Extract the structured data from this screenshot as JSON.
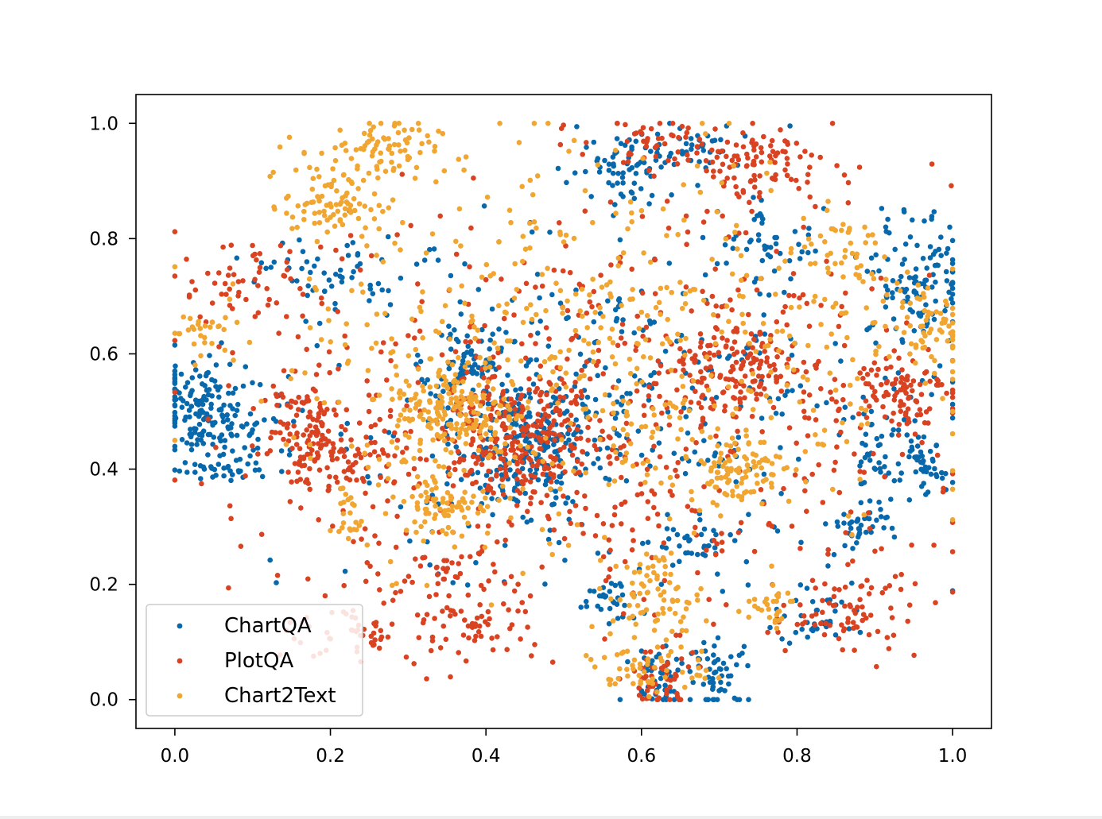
{
  "chart_data": {
    "type": "scatter",
    "title": "",
    "xlabel": "",
    "ylabel": "",
    "xlim": [
      -0.05,
      1.05
    ],
    "ylim": [
      -0.05,
      1.05
    ],
    "xticks": [
      "0.0",
      "0.2",
      "0.4",
      "0.6",
      "0.8",
      "1.0"
    ],
    "yticks": [
      "0.0",
      "0.2",
      "0.4",
      "0.6",
      "0.8",
      "1.0"
    ],
    "xtick_values": [
      0.0,
      0.2,
      0.4,
      0.6,
      0.8,
      1.0
    ],
    "ytick_values": [
      0.0,
      0.2,
      0.4,
      0.6,
      0.8,
      1.0
    ],
    "legend_position": "lower-left",
    "grid": false,
    "series": [
      {
        "name": "ChartQA",
        "color": "#0868ac",
        "clusters": [
          {
            "cx": 0.03,
            "cy": 0.5,
            "sx": 0.03,
            "sy": 0.04,
            "n": 120
          },
          {
            "cx": 0.09,
            "cy": 0.48,
            "sx": 0.04,
            "sy": 0.04,
            "n": 60
          },
          {
            "cx": 0.07,
            "cy": 0.4,
            "sx": 0.04,
            "sy": 0.01,
            "n": 30
          },
          {
            "cx": 0.45,
            "cy": 0.44,
            "sx": 0.04,
            "sy": 0.05,
            "n": 220
          },
          {
            "cx": 0.38,
            "cy": 0.58,
            "sx": 0.03,
            "sy": 0.03,
            "n": 70
          },
          {
            "cx": 0.96,
            "cy": 0.72,
            "sx": 0.03,
            "sy": 0.06,
            "n": 120
          },
          {
            "cx": 0.96,
            "cy": 0.4,
            "sx": 0.015,
            "sy": 0.03,
            "n": 45
          },
          {
            "cx": 0.9,
            "cy": 0.42,
            "sx": 0.015,
            "sy": 0.04,
            "n": 40
          },
          {
            "cx": 0.88,
            "cy": 0.3,
            "sx": 0.02,
            "sy": 0.02,
            "n": 35
          },
          {
            "cx": 0.7,
            "cy": 0.04,
            "sx": 0.02,
            "sy": 0.03,
            "n": 55
          },
          {
            "cx": 0.62,
            "cy": 0.04,
            "sx": 0.02,
            "sy": 0.03,
            "n": 45
          },
          {
            "cx": 0.58,
            "cy": 0.93,
            "sx": 0.03,
            "sy": 0.03,
            "n": 60
          },
          {
            "cx": 0.67,
            "cy": 0.96,
            "sx": 0.03,
            "sy": 0.02,
            "n": 40
          },
          {
            "cx": 0.83,
            "cy": 0.15,
            "sx": 0.03,
            "sy": 0.03,
            "n": 40
          },
          {
            "cx": 0.76,
            "cy": 0.8,
            "sx": 0.03,
            "sy": 0.03,
            "n": 40
          },
          {
            "cx": 0.56,
            "cy": 0.17,
            "sx": 0.02,
            "sy": 0.02,
            "n": 30
          },
          {
            "cx": 0.68,
            "cy": 0.27,
            "sx": 0.03,
            "sy": 0.02,
            "n": 30
          },
          {
            "cx": 0.2,
            "cy": 0.74,
            "sx": 0.04,
            "sy": 0.03,
            "n": 50
          },
          {
            "cx": 0.55,
            "cy": 0.5,
            "sx": 0.2,
            "sy": 0.15,
            "n": 380
          }
        ]
      },
      {
        "name": "PlotQA",
        "color": "#d94321",
        "clusters": [
          {
            "cx": 0.45,
            "cy": 0.45,
            "sx": 0.05,
            "sy": 0.05,
            "n": 220
          },
          {
            "cx": 0.72,
            "cy": 0.58,
            "sx": 0.05,
            "sy": 0.04,
            "n": 140
          },
          {
            "cx": 0.93,
            "cy": 0.54,
            "sx": 0.03,
            "sy": 0.03,
            "n": 90
          },
          {
            "cx": 0.16,
            "cy": 0.48,
            "sx": 0.03,
            "sy": 0.04,
            "n": 90
          },
          {
            "cx": 0.23,
            "cy": 0.41,
            "sx": 0.04,
            "sy": 0.03,
            "n": 80
          },
          {
            "cx": 0.25,
            "cy": 0.12,
            "sx": 0.05,
            "sy": 0.03,
            "n": 70
          },
          {
            "cx": 0.4,
            "cy": 0.13,
            "sx": 0.03,
            "sy": 0.03,
            "n": 40
          },
          {
            "cx": 0.34,
            "cy": 0.22,
            "sx": 0.04,
            "sy": 0.03,
            "n": 40
          },
          {
            "cx": 0.62,
            "cy": 0.03,
            "sx": 0.02,
            "sy": 0.03,
            "n": 50
          },
          {
            "cx": 0.86,
            "cy": 0.15,
            "sx": 0.05,
            "sy": 0.04,
            "n": 80
          },
          {
            "cx": 0.75,
            "cy": 0.93,
            "sx": 0.05,
            "sy": 0.03,
            "n": 100
          },
          {
            "cx": 0.62,
            "cy": 0.97,
            "sx": 0.05,
            "sy": 0.02,
            "n": 50
          },
          {
            "cx": 0.08,
            "cy": 0.72,
            "sx": 0.05,
            "sy": 0.04,
            "n": 50
          },
          {
            "cx": 0.55,
            "cy": 0.5,
            "sx": 0.22,
            "sy": 0.18,
            "n": 600
          }
        ]
      },
      {
        "name": "Chart2Text",
        "color": "#f0a630",
        "clusters": [
          {
            "cx": 0.26,
            "cy": 0.95,
            "sx": 0.04,
            "sy": 0.03,
            "n": 80
          },
          {
            "cx": 0.2,
            "cy": 0.86,
            "sx": 0.03,
            "sy": 0.03,
            "n": 80
          },
          {
            "cx": 0.36,
            "cy": 0.5,
            "sx": 0.04,
            "sy": 0.04,
            "n": 170
          },
          {
            "cx": 0.35,
            "cy": 0.34,
            "sx": 0.03,
            "sy": 0.03,
            "n": 80
          },
          {
            "cx": 0.72,
            "cy": 0.4,
            "sx": 0.03,
            "sy": 0.03,
            "n": 90
          },
          {
            "cx": 0.62,
            "cy": 0.18,
            "sx": 0.03,
            "sy": 0.04,
            "n": 80
          },
          {
            "cx": 0.6,
            "cy": 0.05,
            "sx": 0.04,
            "sy": 0.02,
            "n": 50
          },
          {
            "cx": 0.96,
            "cy": 0.65,
            "sx": 0.03,
            "sy": 0.04,
            "n": 70
          },
          {
            "cx": 0.03,
            "cy": 0.64,
            "sx": 0.02,
            "sy": 0.02,
            "n": 30
          },
          {
            "cx": 0.22,
            "cy": 0.32,
            "sx": 0.01,
            "sy": 0.03,
            "n": 20
          },
          {
            "cx": 0.86,
            "cy": 0.78,
            "sx": 0.03,
            "sy": 0.04,
            "n": 40
          },
          {
            "cx": 0.76,
            "cy": 0.16,
            "sx": 0.02,
            "sy": 0.02,
            "n": 30
          },
          {
            "cx": 0.55,
            "cy": 0.6,
            "sx": 0.2,
            "sy": 0.17,
            "n": 550
          }
        ]
      }
    ]
  }
}
